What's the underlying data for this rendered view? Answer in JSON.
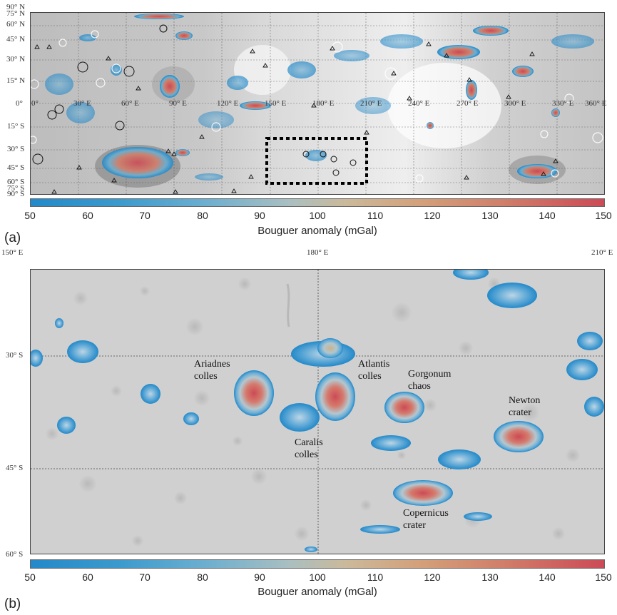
{
  "panel_a": {
    "label": "(a)",
    "lon_ticks": [
      "0°",
      "30° E",
      "60° E",
      "90° E",
      "120° E",
      "150° E",
      "180° E",
      "210° E",
      "240° E",
      "270° E",
      "300° E",
      "330° E",
      "360° E"
    ],
    "lat_ticks": [
      "90° N",
      "75° N",
      "60° N",
      "45° N",
      "30° N",
      "15° N",
      "0°",
      "15° S",
      "30° S",
      "45° S",
      "60° S",
      "75° S",
      "90° S"
    ],
    "colorbar": {
      "ticks": [
        "50",
        "60",
        "70",
        "80",
        "90",
        "100",
        "110",
        "120",
        "130",
        "140",
        "150"
      ],
      "title": "Bouguer anomaly (mGal)",
      "min": 50,
      "max": 150
    }
  },
  "panel_b": {
    "label": "(b)",
    "lon_ticks": [
      "150° E",
      "180° E",
      "210° E"
    ],
    "lat_ticks": [
      "30° S",
      "45° S",
      "60° S"
    ],
    "features": [
      {
        "name": "Ariadnes\ncolles"
      },
      {
        "name": "Atlantis\ncolles"
      },
      {
        "name": "Gorgonum\nchaos"
      },
      {
        "name": "Newton\ncrater"
      },
      {
        "name": "Caralis\ncolles"
      },
      {
        "name": "Copernicus\ncrater"
      }
    ],
    "colorbar": {
      "ticks": [
        "50",
        "60",
        "70",
        "80",
        "90",
        "100",
        "110",
        "120",
        "130",
        "140",
        "150"
      ],
      "title": "Bouguer anomaly (mGal)",
      "min": 50,
      "max": 150
    }
  },
  "colors": {
    "low": "#2389c9",
    "mid": "#cbb99a",
    "high": "#cc4a56",
    "box_outline": "#000000"
  }
}
